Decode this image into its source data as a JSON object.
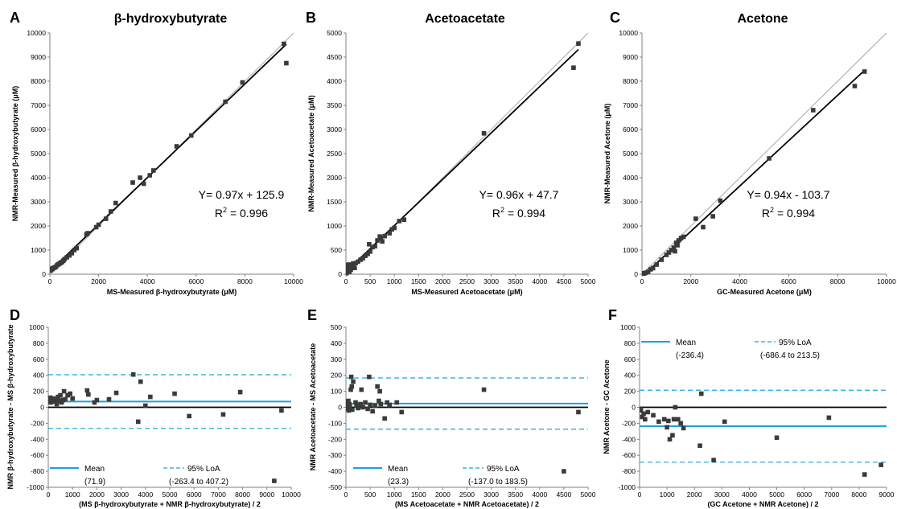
{
  "colors": {
    "point": "#3a3a3a",
    "fit_line": "#000000",
    "identity_line": "#a8a8a8",
    "mean_line": "#1aa3d9",
    "loa_line": "#1aa3d9",
    "zero_line": "#000000",
    "axis": "#808080"
  },
  "chart_data": [
    {
      "panel": "A",
      "type": "scatter",
      "title": "β-hydroxybutyrate",
      "xlabel": "MS-Measured β-hydroxybutyrate (μM)",
      "ylabel": "NMR-Measured β-hydroxybutyrate (μM)",
      "xlim": [
        0,
        10000
      ],
      "ylim": [
        0,
        10000
      ],
      "xticks": [
        0,
        2000,
        4000,
        6000,
        8000,
        10000
      ],
      "yticks": [
        0,
        1000,
        2000,
        3000,
        4000,
        5000,
        6000,
        7000,
        8000,
        9000,
        10000
      ],
      "equation": "Y= 0.97x + 125.9",
      "r2_label": "R",
      "r2_value": " = 0.996",
      "fit": {
        "slope": 0.97,
        "intercept": 125.9
      },
      "identity_line": true,
      "points": [
        [
          20,
          150
        ],
        [
          40,
          170
        ],
        [
          60,
          200
        ],
        [
          80,
          220
        ],
        [
          100,
          210
        ],
        [
          120,
          240
        ],
        [
          150,
          260
        ],
        [
          200,
          280
        ],
        [
          250,
          310
        ],
        [
          300,
          380
        ],
        [
          350,
          410
        ],
        [
          400,
          440
        ],
        [
          450,
          480
        ],
        [
          500,
          500
        ],
        [
          550,
          560
        ],
        [
          600,
          620
        ],
        [
          700,
          700
        ],
        [
          800,
          780
        ],
        [
          900,
          870
        ],
        [
          1000,
          1000
        ],
        [
          1100,
          1080
        ],
        [
          1500,
          1650
        ],
        [
          1550,
          1700
        ],
        [
          1900,
          1950
        ],
        [
          2000,
          2050
        ],
        [
          2300,
          2300
        ],
        [
          2500,
          2600
        ],
        [
          2700,
          2950
        ],
        [
          3400,
          3800
        ],
        [
          3700,
          4000
        ],
        [
          3850,
          3750
        ],
        [
          4100,
          4100
        ],
        [
          4250,
          4300
        ],
        [
          5200,
          5300
        ],
        [
          5800,
          5750
        ],
        [
          7200,
          7150
        ],
        [
          7900,
          7950
        ],
        [
          9600,
          9550
        ],
        [
          9700,
          8750
        ]
      ]
    },
    {
      "panel": "B",
      "type": "scatter",
      "title": "Acetoacetate",
      "xlabel": "MS-Measured Acetoacetate (μM)",
      "ylabel": "NMR-Measured Acetoacetate (μM)",
      "xlim": [
        0,
        5000
      ],
      "ylim": [
        0,
        5000
      ],
      "xticks": [
        0,
        500,
        1000,
        1500,
        2000,
        2500,
        3000,
        3500,
        4000,
        4500,
        5000
      ],
      "yticks": [
        0,
        500,
        1000,
        1500,
        2000,
        2500,
        3000,
        3500,
        4000,
        4500,
        5000
      ],
      "equation": "Y= 0.96x + 47.7",
      "r2_label": "R",
      "r2_value": " = 0.994",
      "fit": {
        "slope": 0.96,
        "intercept": 47.7
      },
      "identity_line": true,
      "points": [
        [
          10,
          20
        ],
        [
          20,
          60
        ],
        [
          30,
          150
        ],
        [
          40,
          190
        ],
        [
          50,
          100
        ],
        [
          60,
          200
        ],
        [
          70,
          50
        ],
        [
          80,
          120
        ],
        [
          100,
          90
        ],
        [
          120,
          180
        ],
        [
          150,
          220
        ],
        [
          180,
          130
        ],
        [
          200,
          230
        ],
        [
          250,
          260
        ],
        [
          300,
          300
        ],
        [
          350,
          330
        ],
        [
          400,
          380
        ],
        [
          450,
          420
        ],
        [
          480,
          620
        ],
        [
          500,
          470
        ],
        [
          550,
          560
        ],
        [
          600,
          580
        ],
        [
          650,
          700
        ],
        [
          700,
          780
        ],
        [
          720,
          750
        ],
        [
          750,
          680
        ],
        [
          800,
          790
        ],
        [
          900,
          850
        ],
        [
          950,
          930
        ],
        [
          1000,
          960
        ],
        [
          1100,
          1100
        ],
        [
          1200,
          1130
        ],
        [
          2850,
          2920
        ],
        [
          4700,
          4280
        ],
        [
          4800,
          4780
        ]
      ]
    },
    {
      "panel": "C",
      "type": "scatter",
      "title": "Acetone",
      "xlabel": "GC-Measured Acetone (μM)",
      "ylabel": "NMR-Measured Acetone (μM)",
      "xlim": [
        0,
        10000
      ],
      "ylim": [
        0,
        10000
      ],
      "xticks": [
        0,
        2000,
        4000,
        6000,
        8000,
        10000
      ],
      "yticks": [
        0,
        1000,
        2000,
        3000,
        4000,
        5000,
        6000,
        7000,
        8000,
        9000,
        10000
      ],
      "equation": "Y= 0.94x - 103.7",
      "r2_label": "R",
      "r2_value": " = 0.994",
      "fit": {
        "slope": 0.94,
        "intercept": -103.7
      },
      "identity_line": true,
      "points": [
        [
          30,
          10
        ],
        [
          60,
          30
        ],
        [
          100,
          40
        ],
        [
          150,
          60
        ],
        [
          250,
          100
        ],
        [
          350,
          200
        ],
        [
          450,
          250
        ],
        [
          600,
          400
        ],
        [
          800,
          600
        ],
        [
          1000,
          800
        ],
        [
          1100,
          900
        ],
        [
          1200,
          1000
        ],
        [
          1300,
          1100
        ],
        [
          1350,
          950
        ],
        [
          1400,
          1300
        ],
        [
          1450,
          1200
        ],
        [
          1500,
          1400
        ],
        [
          1600,
          1500
        ],
        [
          1700,
          1550
        ],
        [
          2200,
          2300
        ],
        [
          2500,
          1950
        ],
        [
          2900,
          2400
        ],
        [
          3200,
          3050
        ],
        [
          5200,
          4800
        ],
        [
          7000,
          6800
        ],
        [
          8700,
          7800
        ],
        [
          9100,
          8400
        ]
      ]
    },
    {
      "panel": "D",
      "type": "scatter",
      "xlabel": "(MS β-hydroxybutyrate + NMR β-hydroxybutyrate) / 2",
      "ylabel": "NMR β-hydroxybutyrate - MS β-hydroxybutyrate",
      "xlim": [
        0,
        10000
      ],
      "ylim": [
        -1000,
        1000
      ],
      "xticks": [
        0,
        1000,
        2000,
        3000,
        4000,
        5000,
        6000,
        7000,
        8000,
        9000,
        10000
      ],
      "yticks": [
        -1000,
        -800,
        -600,
        -400,
        -200,
        0,
        200,
        400,
        600,
        800,
        1000
      ],
      "mean": 71.9,
      "loa": [
        -263.4,
        407.2
      ],
      "legend": {
        "mean_label": "Mean",
        "mean_value": "(71.9)",
        "loa_label": "95% LoA",
        "loa_value": "(-263.4 to 407.2)"
      },
      "points": [
        [
          20,
          100
        ],
        [
          50,
          80
        ],
        [
          80,
          120
        ],
        [
          100,
          60
        ],
        [
          150,
          90
        ],
        [
          200,
          110
        ],
        [
          250,
          70
        ],
        [
          300,
          100
        ],
        [
          350,
          40
        ],
        [
          400,
          130
        ],
        [
          450,
          80
        ],
        [
          500,
          150
        ],
        [
          550,
          60
        ],
        [
          600,
          90
        ],
        [
          650,
          200
        ],
        [
          700,
          100
        ],
        [
          800,
          150
        ],
        [
          900,
          170
        ],
        [
          1000,
          110
        ],
        [
          1600,
          210
        ],
        [
          1650,
          160
        ],
        [
          1900,
          60
        ],
        [
          2000,
          90
        ],
        [
          2500,
          100
        ],
        [
          2800,
          180
        ],
        [
          3500,
          410
        ],
        [
          3700,
          -180
        ],
        [
          3800,
          320
        ],
        [
          4000,
          20
        ],
        [
          4200,
          130
        ],
        [
          5200,
          170
        ],
        [
          5800,
          -110
        ],
        [
          7200,
          -90
        ],
        [
          7900,
          190
        ],
        [
          9300,
          -920
        ],
        [
          9600,
          -40
        ]
      ]
    },
    {
      "panel": "E",
      "type": "scatter",
      "xlabel": "(MS Acetoacetate + NMR Acetoacetate) / 2",
      "ylabel": "NMR Acetoacetate - MS Acetoacetate",
      "xlim": [
        0,
        5000
      ],
      "ylim": [
        -500,
        500
      ],
      "xticks": [
        0,
        500,
        1000,
        1500,
        2000,
        2500,
        3000,
        3500,
        4000,
        4500,
        5000
      ],
      "yticks": [
        -500,
        -400,
        -300,
        -200,
        -100,
        0,
        100,
        200,
        300,
        400,
        500
      ],
      "mean": 23.3,
      "loa": [
        -137.0,
        183.5
      ],
      "legend": {
        "mean_label": "Mean",
        "mean_value": "(23.3)",
        "loa_label": "95% LoA",
        "loa_value": "(-137.0 to 183.5)"
      },
      "points": [
        [
          10,
          0
        ],
        [
          20,
          30
        ],
        [
          30,
          -10
        ],
        [
          40,
          10
        ],
        [
          50,
          40
        ],
        [
          60,
          -20
        ],
        [
          70,
          20
        ],
        [
          80,
          5
        ],
        [
          100,
          110
        ],
        [
          110,
          190
        ],
        [
          120,
          130
        ],
        [
          130,
          -15
        ],
        [
          150,
          160
        ],
        [
          200,
          30
        ],
        [
          220,
          10
        ],
        [
          250,
          -5
        ],
        [
          300,
          20
        ],
        [
          320,
          110
        ],
        [
          350,
          0
        ],
        [
          400,
          30
        ],
        [
          450,
          -10
        ],
        [
          480,
          190
        ],
        [
          500,
          15
        ],
        [
          550,
          -25
        ],
        [
          600,
          10
        ],
        [
          650,
          130
        ],
        [
          680,
          40
        ],
        [
          700,
          100
        ],
        [
          720,
          20
        ],
        [
          800,
          -70
        ],
        [
          850,
          30
        ],
        [
          900,
          15
        ],
        [
          1050,
          30
        ],
        [
          1150,
          -30
        ],
        [
          2850,
          110
        ],
        [
          4500,
          -400
        ],
        [
          4800,
          -30
        ]
      ]
    },
    {
      "panel": "F",
      "type": "scatter",
      "xlabel": "(GC Acetone + NMR Acetone) / 2",
      "ylabel": "NMR Acetone - GC Acetone",
      "xlim": [
        0,
        9000
      ],
      "ylim": [
        -1000,
        1000
      ],
      "xticks": [
        0,
        1000,
        2000,
        3000,
        4000,
        5000,
        6000,
        7000,
        8000,
        9000
      ],
      "yticks": [
        -1000,
        -800,
        -600,
        -400,
        -200,
        0,
        200,
        400,
        600,
        800,
        1000
      ],
      "mean": -236.4,
      "loa": [
        -686.4,
        213.5
      ],
      "legend": {
        "mean_label": "Mean",
        "mean_value": "(-236.4)",
        "loa_label": "95% LoA",
        "loa_value": "(-686.4 to 213.5)"
      },
      "points": [
        [
          20,
          -20
        ],
        [
          50,
          -40
        ],
        [
          100,
          -120
        ],
        [
          150,
          -80
        ],
        [
          200,
          -150
        ],
        [
          300,
          -60
        ],
        [
          500,
          -100
        ],
        [
          700,
          -180
        ],
        [
          900,
          -150
        ],
        [
          1000,
          -250
        ],
        [
          1050,
          -170
        ],
        [
          1100,
          -400
        ],
        [
          1200,
          -350
        ],
        [
          1250,
          -150
        ],
        [
          1300,
          0
        ],
        [
          1400,
          -150
        ],
        [
          1500,
          -200
        ],
        [
          1600,
          -260
        ],
        [
          2200,
          -480
        ],
        [
          2250,
          170
        ],
        [
          2700,
          -660
        ],
        [
          3100,
          -180
        ],
        [
          5000,
          -380
        ],
        [
          6900,
          -130
        ],
        [
          8200,
          -840
        ],
        [
          8800,
          -720
        ]
      ]
    }
  ]
}
